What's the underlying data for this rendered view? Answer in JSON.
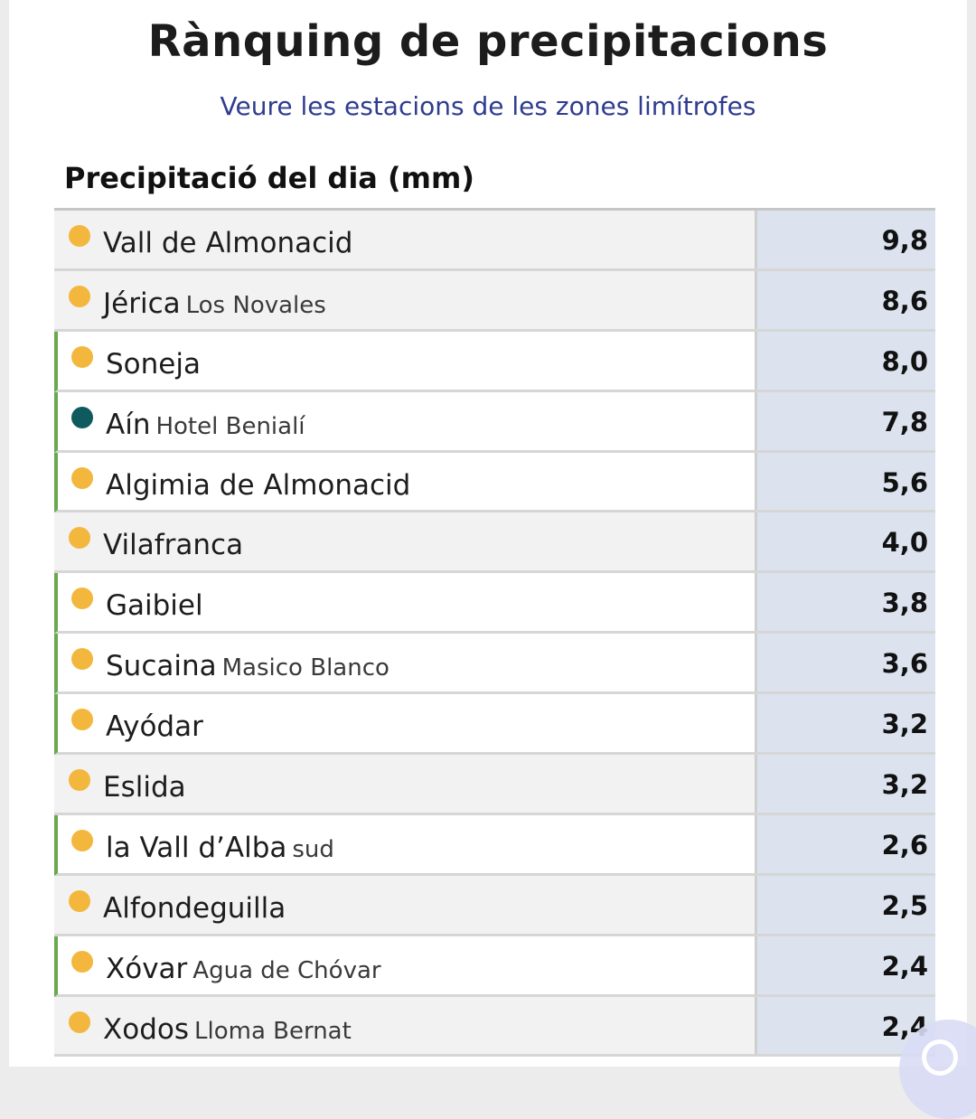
{
  "header": {
    "title": "Rànquing de precipitacions",
    "link": "Veure les estacions de les zones limítrofes"
  },
  "section": {
    "title": "Precipitació del dia (mm)"
  },
  "colors": {
    "dot_default": "#f2b73c",
    "dot_special": "#0f5a5f",
    "accent_border": "#6aa84f",
    "value_bg": "#dce3ef"
  },
  "rows": [
    {
      "name": "Vall de Almonacid",
      "sub": "",
      "value": "9,8"
    },
    {
      "name": "Jérica",
      "sub": "Los Novales",
      "value": "8,6"
    },
    {
      "name": "Soneja",
      "sub": "",
      "value": "8,0"
    },
    {
      "name": "Aín",
      "sub": "Hotel Benialí",
      "value": "7,8"
    },
    {
      "name": "Algimia de Almonacid",
      "sub": "",
      "value": "5,6"
    },
    {
      "name": "Vilafranca",
      "sub": "",
      "value": "4,0"
    },
    {
      "name": "Gaibiel",
      "sub": "",
      "value": "3,8"
    },
    {
      "name": "Sucaina",
      "sub": "Masico Blanco",
      "value": "3,6"
    },
    {
      "name": "Ayódar",
      "sub": "",
      "value": "3,2"
    },
    {
      "name": "Eslida",
      "sub": "",
      "value": "3,2"
    },
    {
      "name": "la Vall d’Alba",
      "sub": "sud",
      "value": "2,6"
    },
    {
      "name": "Alfondeguilla",
      "sub": "",
      "value": "2,5"
    },
    {
      "name": "Xóvar",
      "sub": "Agua de Chóvar",
      "value": "2,4"
    },
    {
      "name": "Xodos",
      "sub": "Lloma Bernat",
      "value": "2,4"
    }
  ]
}
